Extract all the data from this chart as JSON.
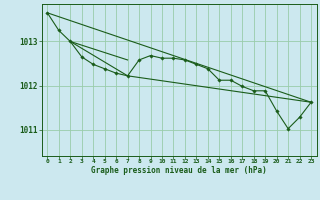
{
  "bg_color": "#cce8ef",
  "grid_color": "#99ccaa",
  "line_color": "#1a5c1a",
  "marker_color": "#1a5c1a",
  "xlabel": "Graphe pression niveau de la mer (hPa)",
  "xlabel_color": "#1a5c1a",
  "ylabel_ticks": [
    1011,
    1012,
    1013
  ],
  "xlim": [
    -0.5,
    23.5
  ],
  "ylim": [
    1010.4,
    1013.85
  ],
  "x_ticks": [
    0,
    1,
    2,
    3,
    4,
    5,
    6,
    7,
    8,
    9,
    10,
    11,
    12,
    13,
    14,
    15,
    16,
    17,
    18,
    19,
    20,
    21,
    22,
    23
  ],
  "line1": {
    "x": [
      0,
      1,
      2,
      3,
      4,
      5,
      6,
      7,
      8,
      9,
      10,
      11,
      12,
      13,
      14,
      15,
      16,
      17,
      18,
      19,
      20,
      21,
      22,
      23
    ],
    "y": [
      1013.65,
      1013.25,
      1013.0,
      1012.65,
      1012.48,
      1012.38,
      1012.28,
      1012.22,
      1012.58,
      1012.68,
      1012.62,
      1012.62,
      1012.58,
      1012.48,
      1012.38,
      1012.12,
      1012.12,
      1011.98,
      1011.88,
      1011.88,
      1011.42,
      1011.02,
      1011.28,
      1011.62
    ]
  },
  "line2": {
    "x": [
      0,
      23
    ],
    "y": [
      1013.65,
      1011.62
    ]
  },
  "line3": {
    "x": [
      2,
      7,
      23
    ],
    "y": [
      1013.0,
      1012.22,
      1011.62
    ]
  },
  "line4": {
    "x": [
      2,
      7
    ],
    "y": [
      1013.0,
      1012.58
    ]
  }
}
